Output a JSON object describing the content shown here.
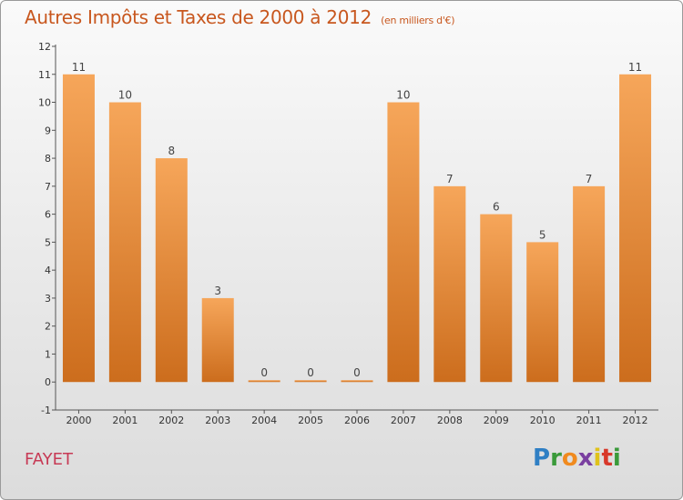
{
  "header": {
    "title": "Autres Impôts et Taxes de 2000 à 2012",
    "subtitle": "(en milliers d'€)"
  },
  "footer": {
    "place": "FAYET",
    "logo": "Proxiti"
  },
  "colors": {
    "title": "#c8571e",
    "place": "#c73a55",
    "bar_light": "#f6a65a",
    "bar_dark": "#cc6d1d"
  },
  "chart_data": {
    "type": "bar",
    "title": "Autres Impôts et Taxes de 2000 à 2012",
    "subtitle": "(en milliers d'€)",
    "categories": [
      "2000",
      "2001",
      "2002",
      "2003",
      "2004",
      "2005",
      "2006",
      "2007",
      "2008",
      "2009",
      "2010",
      "2011",
      "2012"
    ],
    "values": [
      11,
      10,
      8,
      3,
      0,
      0,
      0,
      10,
      7,
      6,
      5,
      7,
      11
    ],
    "data_labels": [
      "11",
      "10",
      "8",
      "3",
      "0",
      "0",
      "0",
      "10",
      "7",
      "6",
      "5",
      "7",
      "11"
    ],
    "ylim": [
      -1,
      12
    ],
    "yticks": [
      "-1",
      "0",
      "1",
      "2",
      "3",
      "4",
      "5",
      "6",
      "7",
      "8",
      "9",
      "10",
      "11",
      "12"
    ],
    "xlabel": "",
    "ylabel": "",
    "grid": false,
    "legend": "none"
  }
}
